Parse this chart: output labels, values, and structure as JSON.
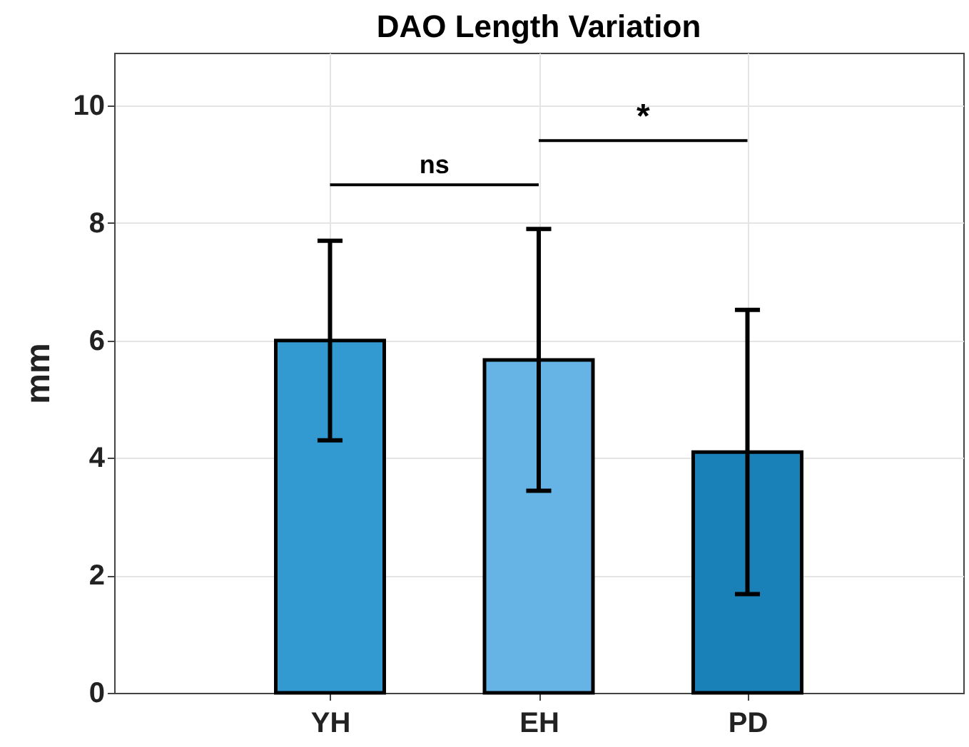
{
  "chart_data": {
    "type": "bar",
    "title": "DAO Length Variation",
    "ylabel": "mm",
    "categories": [
      "YH",
      "EH",
      "PD"
    ],
    "values": [
      6.0,
      5.67,
      4.1
    ],
    "colors": [
      "#3399d1",
      "#66b3e6",
      "#1a80b8"
    ],
    "errors": [
      1.7,
      2.23,
      2.42
    ],
    "ylim": [
      0,
      10.9
    ],
    "yticks": [
      0,
      2,
      4,
      6,
      8,
      10
    ],
    "grid": true,
    "annotations": [
      "ns",
      "*"
    ]
  }
}
